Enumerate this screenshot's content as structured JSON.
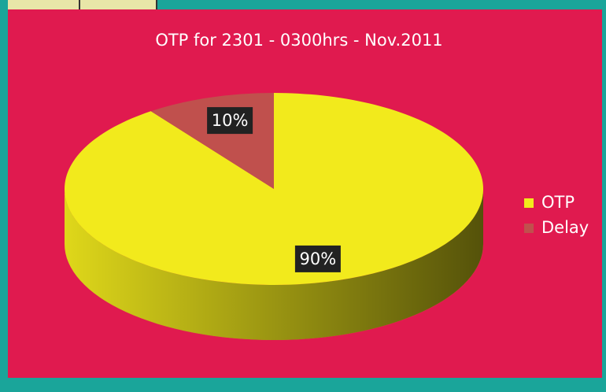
{
  "chart_data": {
    "type": "pie",
    "title": "OTP for 2301 - 0300hrs - Nov.2011",
    "categories": [
      "OTP",
      "Delay"
    ],
    "values": [
      90,
      10
    ],
    "value_labels": [
      "90%",
      "10%"
    ],
    "colors": [
      "#f2ea1c",
      "#c0504d"
    ],
    "legend": "right"
  }
}
